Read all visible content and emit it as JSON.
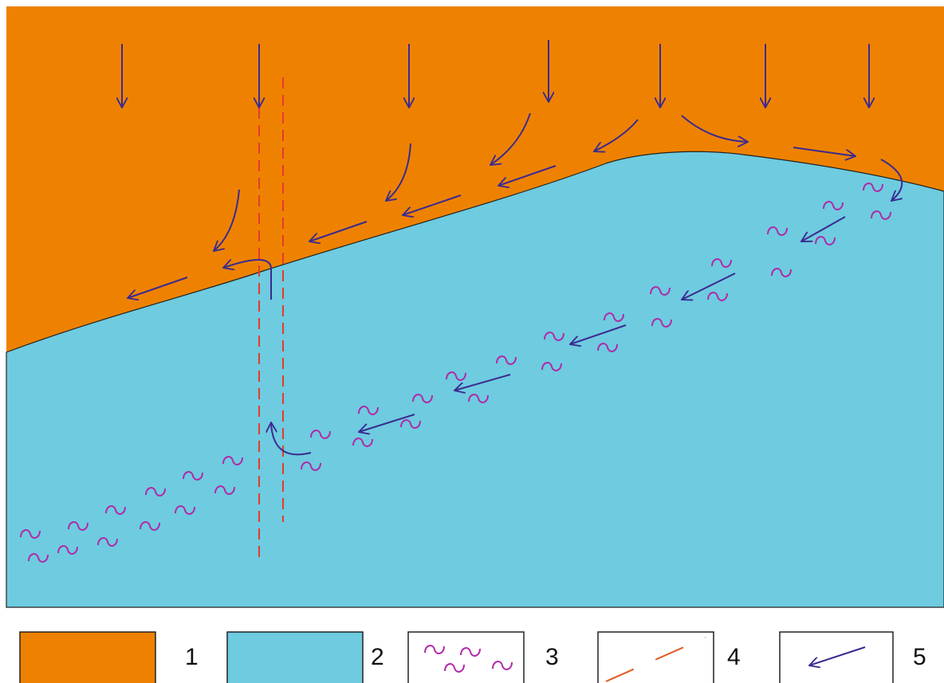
{
  "legend": [
    {
      "label": "1"
    },
    {
      "label": "2"
    },
    {
      "label": "3"
    },
    {
      "label": "4"
    },
    {
      "label": "5"
    }
  ]
}
